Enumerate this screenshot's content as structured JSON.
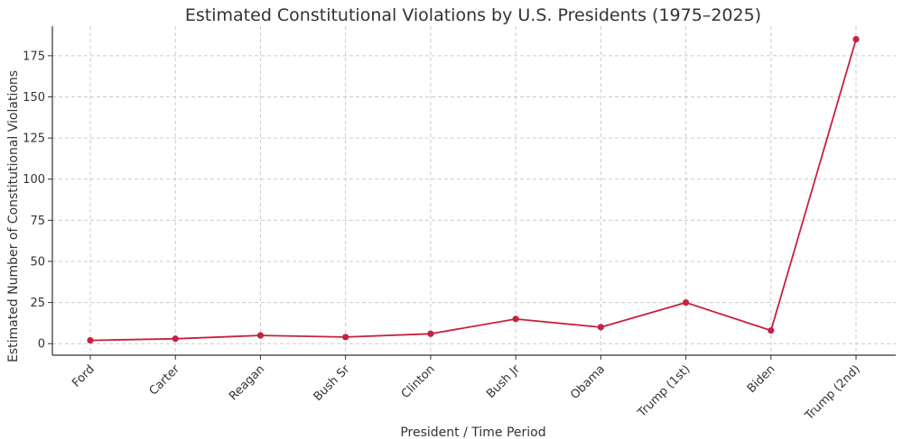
{
  "chart_data": {
    "type": "line",
    "title": "Estimated Constitutional Violations by U.S. Presidents (1975–2025)",
    "xlabel": "President / Time Period",
    "ylabel": "Estimated Number of Constitutional Violations",
    "categories": [
      "Ford",
      "Carter",
      "Reagan",
      "Bush Sr",
      "Clinton",
      "Bush Jr",
      "Obama",
      "Trump (1st)",
      "Biden",
      "Trump (2nd)"
    ],
    "series": [
      {
        "name": "Estimated Violations",
        "values": [
          2,
          3,
          5,
          4,
          6,
          15,
          10,
          25,
          8,
          185
        ],
        "color": "#c8203f"
      }
    ],
    "yticks": [
      0,
      25,
      50,
      75,
      100,
      125,
      150,
      175
    ],
    "ylim": [
      -7,
      193
    ],
    "grid": true,
    "legend": "none"
  }
}
